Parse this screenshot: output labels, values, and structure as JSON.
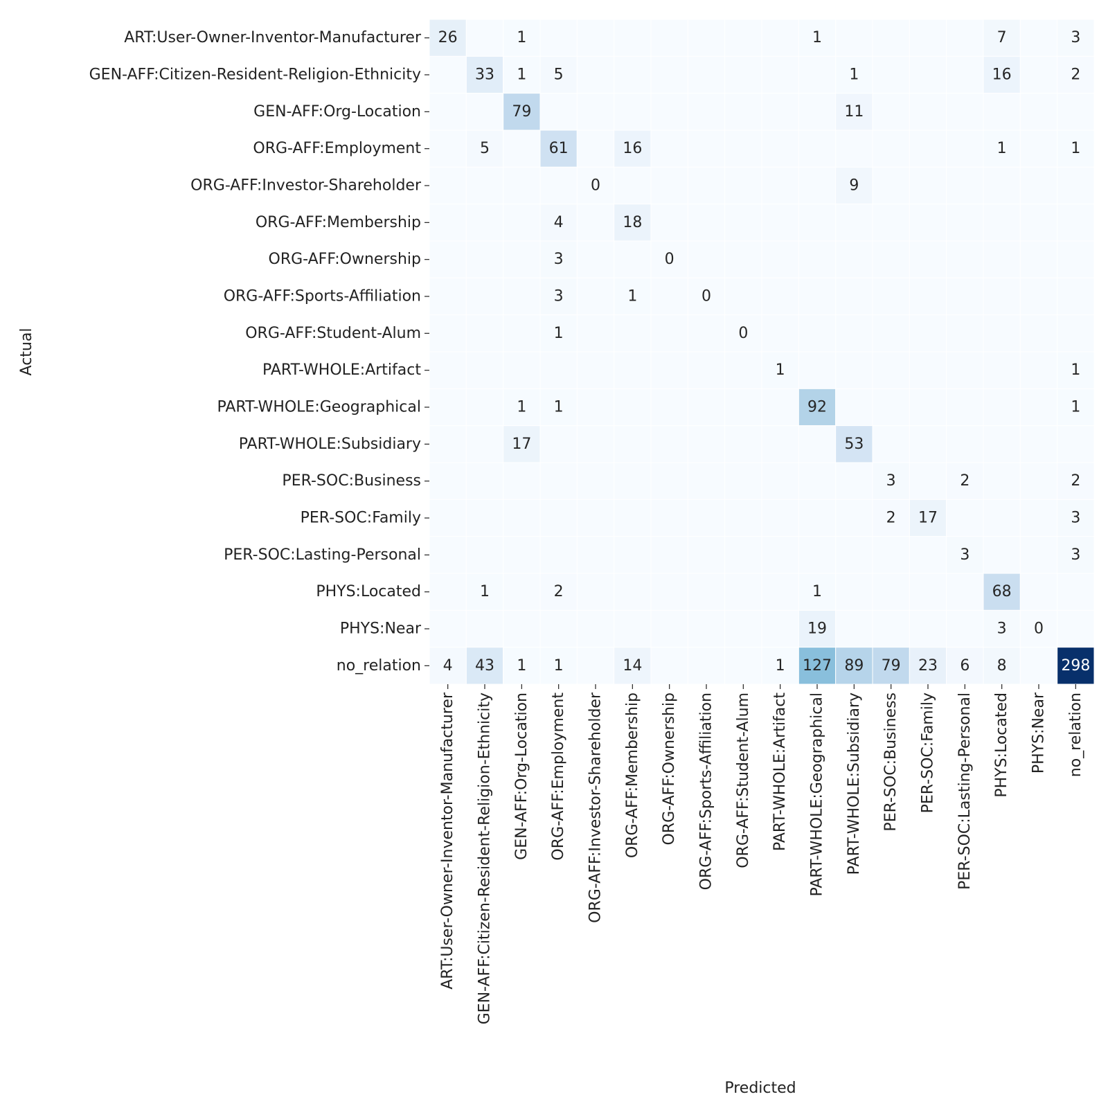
{
  "chart_data": {
    "type": "heatmap",
    "title": "",
    "xlabel": "Predicted",
    "ylabel": "Actual",
    "colormap": "Blues",
    "colors": {
      "low": "#f7fbff",
      "mid": "#c6dbef",
      "high": "#08306b",
      "text_dark": "#262626",
      "text_light": "#ffffff"
    },
    "vmin": 0,
    "vmax": 298,
    "labels": [
      "ART:User-Owner-Inventor-Manufacturer",
      "GEN-AFF:Citizen-Resident-Religion-Ethnicity",
      "GEN-AFF:Org-Location",
      "ORG-AFF:Employment",
      "ORG-AFF:Investor-Shareholder",
      "ORG-AFF:Membership",
      "ORG-AFF:Ownership",
      "ORG-AFF:Sports-Affiliation",
      "ORG-AFF:Student-Alum",
      "PART-WHOLE:Artifact",
      "PART-WHOLE:Geographical",
      "PART-WHOLE:Subsidiary",
      "PER-SOC:Business",
      "PER-SOC:Family",
      "PER-SOC:Lasting-Personal",
      "PHYS:Located",
      "PHYS:Near",
      "no_relation"
    ],
    "matrix": [
      [
        26,
        null,
        1,
        null,
        null,
        null,
        null,
        null,
        null,
        null,
        1,
        null,
        null,
        null,
        null,
        7,
        null,
        3
      ],
      [
        null,
        33,
        1,
        5,
        null,
        null,
        null,
        null,
        null,
        null,
        null,
        1,
        null,
        null,
        null,
        16,
        null,
        2
      ],
      [
        null,
        null,
        79,
        null,
        null,
        null,
        null,
        null,
        null,
        null,
        null,
        11,
        null,
        null,
        null,
        null,
        null,
        null
      ],
      [
        null,
        5,
        null,
        61,
        null,
        16,
        null,
        null,
        null,
        null,
        null,
        null,
        null,
        null,
        null,
        1,
        null,
        1
      ],
      [
        null,
        null,
        null,
        null,
        0,
        null,
        null,
        null,
        null,
        null,
        null,
        9,
        null,
        null,
        null,
        null,
        null,
        null
      ],
      [
        null,
        null,
        null,
        4,
        null,
        18,
        null,
        null,
        null,
        null,
        null,
        null,
        null,
        null,
        null,
        null,
        null,
        null
      ],
      [
        null,
        null,
        null,
        3,
        null,
        null,
        0,
        null,
        null,
        null,
        null,
        null,
        null,
        null,
        null,
        null,
        null,
        null
      ],
      [
        null,
        null,
        null,
        3,
        null,
        1,
        null,
        0,
        null,
        null,
        null,
        null,
        null,
        null,
        null,
        null,
        null,
        null
      ],
      [
        null,
        null,
        null,
        1,
        null,
        null,
        null,
        null,
        0,
        null,
        null,
        null,
        null,
        null,
        null,
        null,
        null,
        null
      ],
      [
        null,
        null,
        null,
        null,
        null,
        null,
        null,
        null,
        null,
        1,
        null,
        null,
        null,
        null,
        null,
        null,
        null,
        1
      ],
      [
        null,
        null,
        1,
        1,
        null,
        null,
        null,
        null,
        null,
        null,
        92,
        null,
        null,
        null,
        null,
        null,
        null,
        1
      ],
      [
        null,
        null,
        17,
        null,
        null,
        null,
        null,
        null,
        null,
        null,
        null,
        53,
        null,
        null,
        null,
        null,
        null,
        null
      ],
      [
        null,
        null,
        null,
        null,
        null,
        null,
        null,
        null,
        null,
        null,
        null,
        null,
        3,
        null,
        2,
        null,
        null,
        2
      ],
      [
        null,
        null,
        null,
        null,
        null,
        null,
        null,
        null,
        null,
        null,
        null,
        null,
        2,
        17,
        null,
        null,
        null,
        3
      ],
      [
        null,
        null,
        null,
        null,
        null,
        null,
        null,
        null,
        null,
        null,
        null,
        null,
        null,
        null,
        3,
        null,
        null,
        3
      ],
      [
        null,
        1,
        null,
        2,
        null,
        null,
        null,
        null,
        null,
        null,
        1,
        null,
        null,
        null,
        null,
        68,
        null,
        null
      ],
      [
        null,
        null,
        null,
        null,
        null,
        null,
        null,
        null,
        null,
        null,
        19,
        null,
        null,
        null,
        null,
        3,
        0,
        null
      ],
      [
        4,
        43,
        1,
        1,
        null,
        14,
        null,
        null,
        null,
        1,
        127,
        89,
        79,
        23,
        6,
        8,
        null,
        298
      ]
    ]
  }
}
